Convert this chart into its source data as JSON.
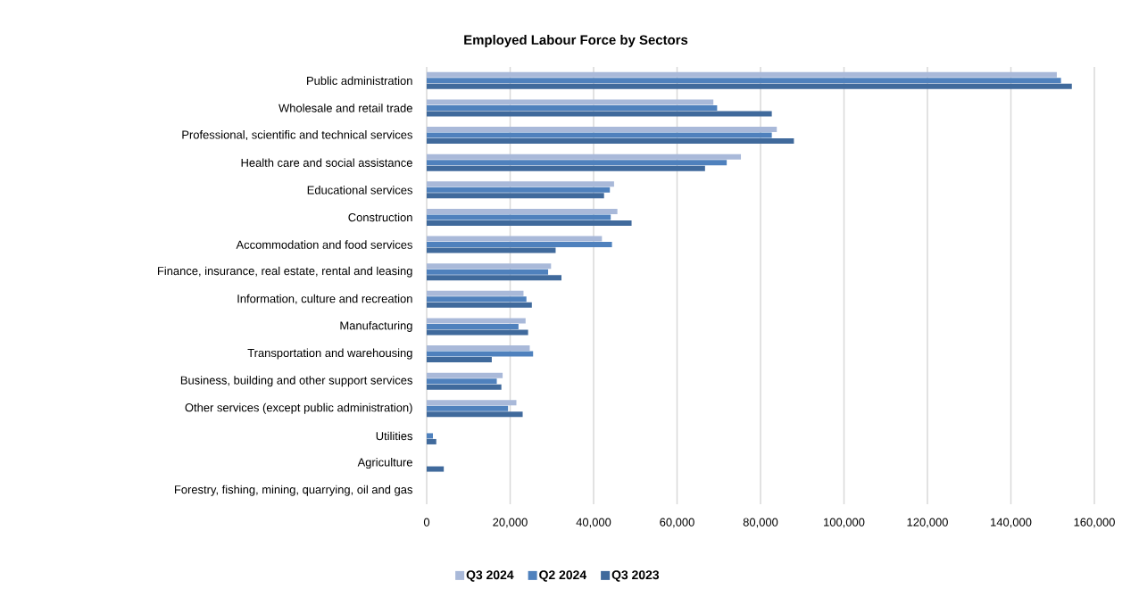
{
  "chart_data": {
    "type": "bar",
    "orientation": "horizontal",
    "title": "Employed Labour Force by Sectors",
    "categories": [
      "Public administration",
      "Wholesale and retail trade",
      "Professional, scientific and technical services",
      "Health care and social assistance",
      "Educational services",
      "Construction",
      "Accommodation and food services",
      "Finance, insurance, real estate, rental and leasing",
      "Information, culture and recreation",
      "Manufacturing",
      "Transportation and warehousing",
      "Business, building and other support services",
      "Other services (except public administration)",
      "Utilities",
      "Agriculture",
      "Forestry, fishing, mining, quarrying, oil and gas"
    ],
    "series": [
      {
        "name": "Q3 2024",
        "color": "#a9b9d9",
        "values": [
          151000,
          68700,
          83900,
          75300,
          44900,
          45700,
          42000,
          29800,
          23200,
          23700,
          24700,
          18200,
          21500,
          null,
          null,
          null
        ]
      },
      {
        "name": "Q2 2024",
        "color": "#4f81bd",
        "values": [
          152000,
          69600,
          82700,
          71900,
          43900,
          44100,
          44400,
          29100,
          23900,
          22000,
          25500,
          16800,
          19500,
          1500,
          null,
          null
        ]
      },
      {
        "name": "Q3 2023",
        "color": "#406a9c",
        "values": [
          154600,
          82700,
          88000,
          66700,
          42500,
          49100,
          30900,
          32300,
          25200,
          24300,
          15600,
          17900,
          23000,
          2300,
          4100,
          null
        ]
      }
    ],
    "xlim": [
      0,
      160000
    ],
    "xticks": [
      0,
      {
        "value": 20000,
        "label": "20,000"
      },
      {
        "value": 40000,
        "label": "40,000"
      },
      {
        "value": 60000,
        "label": "60,000"
      },
      {
        "value": 80000,
        "label": "80,000"
      },
      {
        "value": 100000,
        "label": "100,000"
      },
      {
        "value": 120000,
        "label": "120,000"
      },
      {
        "value": 140000,
        "label": "140,000"
      },
      {
        "value": 160000,
        "label": "160,000"
      }
    ],
    "grid": "x",
    "legend": "bottom"
  }
}
